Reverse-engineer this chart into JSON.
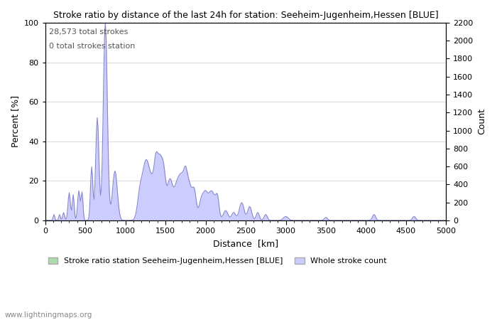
{
  "title": "Stroke ratio by distance of the last 24h for station: Seeheim-Jugenheim,Hessen [BLUE]",
  "xlabel": "Distance  [km]",
  "ylabel_left": "Percent [%]",
  "ylabel_right": "Count",
  "annotation_line1": "28,573 total strokes",
  "annotation_line2": "0 total strokes station",
  "xlim": [
    0,
    5000
  ],
  "ylim_left": [
    0,
    100
  ],
  "ylim_right": [
    0,
    2200
  ],
  "yticks_left": [
    0,
    20,
    40,
    60,
    80,
    100
  ],
  "yticks_right": [
    0,
    200,
    400,
    600,
    800,
    1000,
    1200,
    1400,
    1600,
    1800,
    2000,
    2200
  ],
  "xticks": [
    0,
    500,
    1000,
    1500,
    2000,
    2500,
    3000,
    3500,
    4000,
    4500,
    5000
  ],
  "fill_color": "#ccccff",
  "line_color": "#8888cc",
  "legend_fill_color_1": "#aaddaa",
  "legend_fill_color_2": "#ccccff",
  "background_color": "#ffffff",
  "grid_color": "#cccccc",
  "legend_label_1": "Stroke ratio station Seeheim-Jugenheim,Hessen [BLUE]",
  "legend_label_2": "Whole stroke count",
  "watermark": "www.lightningmaps.org"
}
